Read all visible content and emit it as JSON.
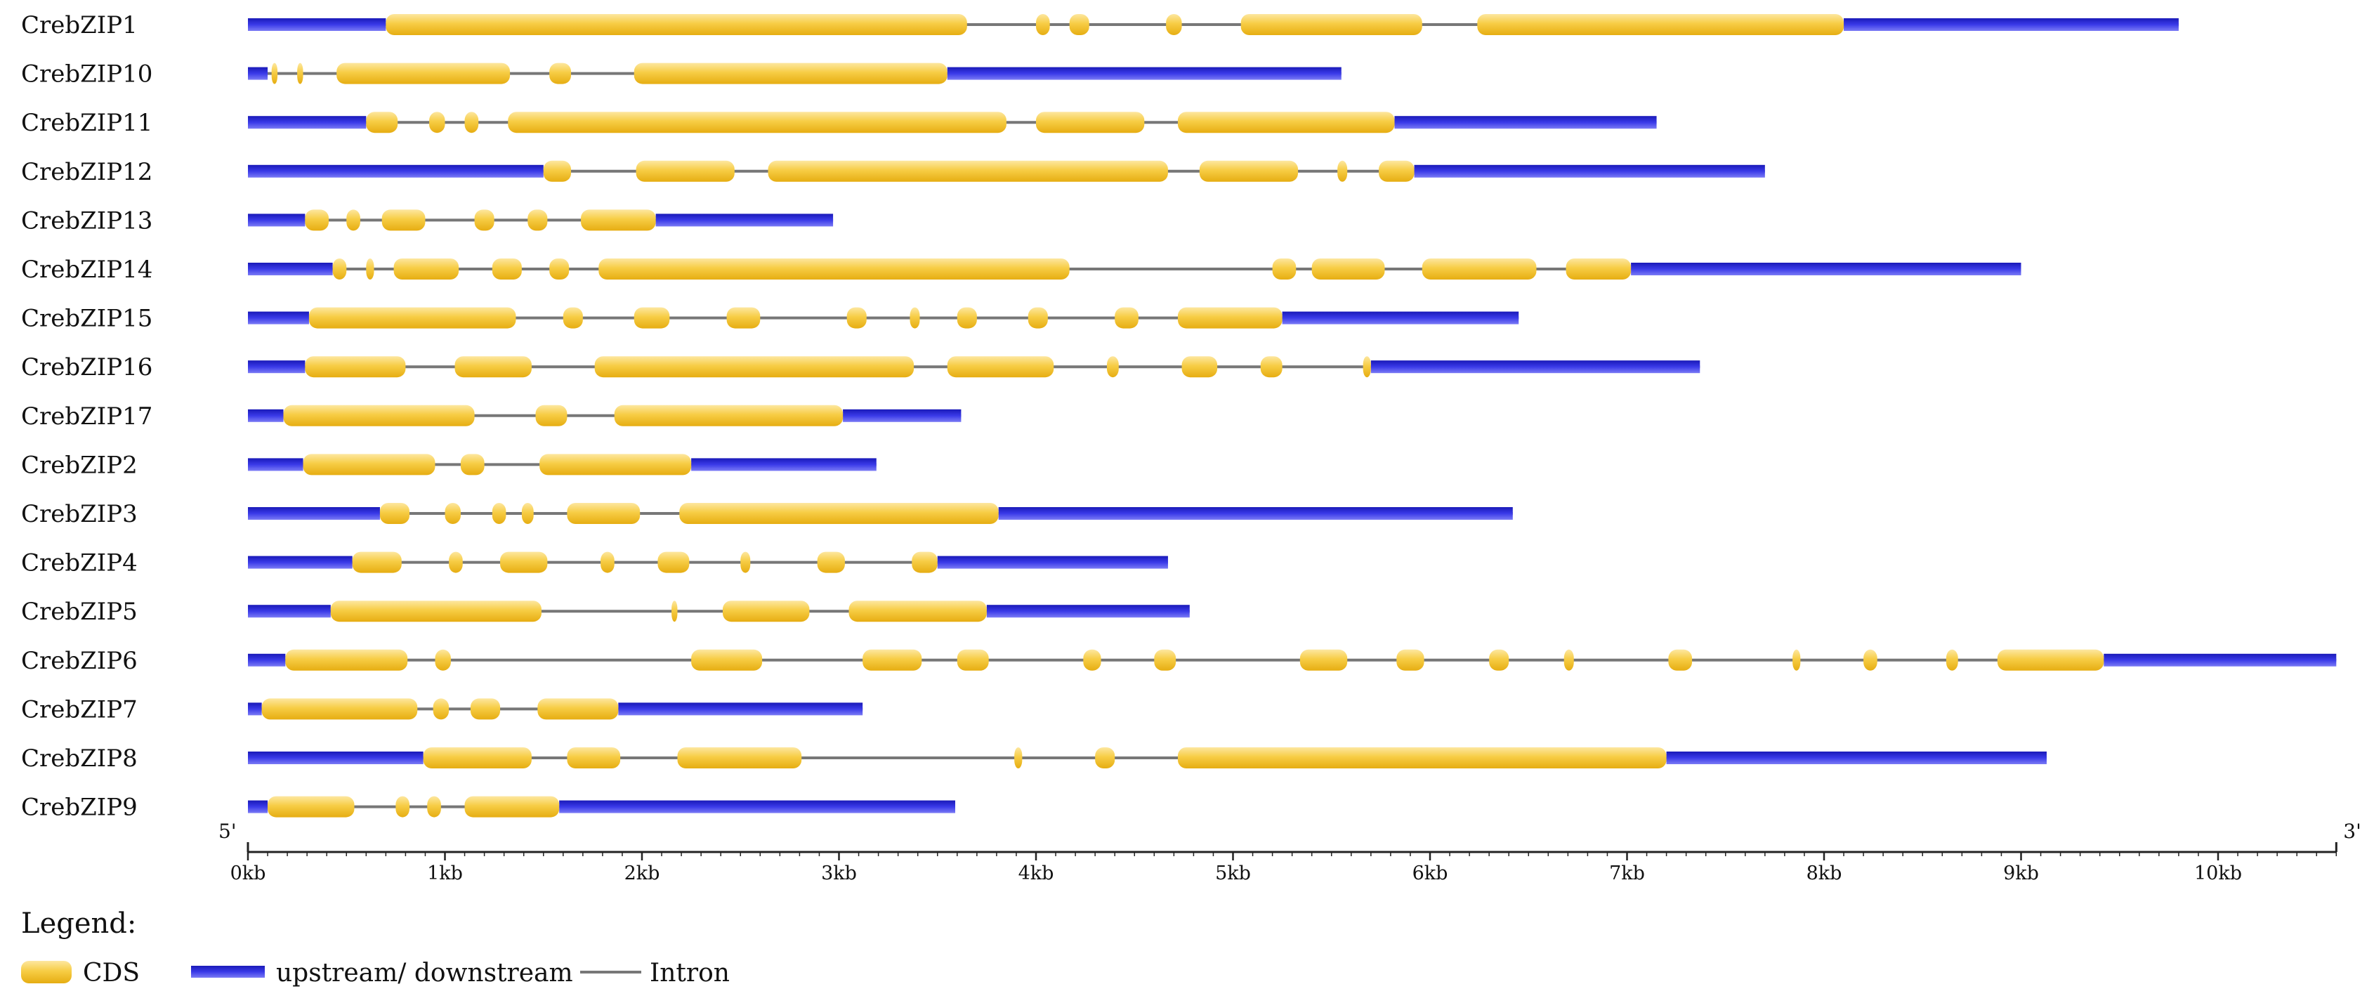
{
  "chart_data": {
    "type": "gene-structure",
    "unit": "kb",
    "axis": {
      "min": 0,
      "max": 10.6,
      "ticks": [
        0,
        1,
        2,
        3,
        4,
        5,
        6,
        7,
        8,
        9,
        10
      ],
      "tick_labels": [
        "0kb",
        "1kb",
        "2kb",
        "3kb",
        "4kb",
        "5kb",
        "6kb",
        "7kb",
        "8kb",
        "9kb",
        "10kb"
      ],
      "left_end": "5'",
      "right_end": "3'"
    },
    "colors": {
      "cds": "#f5c542",
      "utr": "#1f1fc8",
      "intron": "#777777"
    },
    "genes": [
      {
        "name": "CrebZIP1",
        "length": 9.8,
        "utr": [
          [
            0,
            0.7
          ],
          [
            8.1,
            9.8
          ]
        ],
        "cds": [
          [
            0.7,
            3.65
          ],
          [
            4.0,
            4.07
          ],
          [
            4.17,
            4.27
          ],
          [
            4.66,
            4.74
          ],
          [
            5.04,
            5.96
          ],
          [
            6.24,
            8.1
          ]
        ]
      },
      {
        "name": "CrebZIP10",
        "length": 5.55,
        "utr": [
          [
            0,
            0.1
          ],
          [
            3.55,
            5.55
          ]
        ],
        "cds": [
          [
            0.12,
            0.15
          ],
          [
            0.25,
            0.28
          ],
          [
            0.45,
            1.33
          ],
          [
            1.53,
            1.64
          ],
          [
            1.96,
            3.55
          ]
        ]
      },
      {
        "name": "CrebZIP11",
        "length": 7.15,
        "utr": [
          [
            0,
            0.6
          ],
          [
            5.82,
            7.15
          ]
        ],
        "cds": [
          [
            0.6,
            0.76
          ],
          [
            0.92,
            1.0
          ],
          [
            1.1,
            1.17
          ],
          [
            1.32,
            3.85
          ],
          [
            4.0,
            4.55
          ],
          [
            4.72,
            5.82
          ]
        ]
      },
      {
        "name": "CrebZIP12",
        "length": 7.7,
        "utr": [
          [
            0,
            1.5
          ],
          [
            5.92,
            7.7
          ]
        ],
        "cds": [
          [
            1.5,
            1.64
          ],
          [
            1.97,
            2.47
          ],
          [
            2.64,
            4.67
          ],
          [
            4.83,
            5.33
          ],
          [
            5.53,
            5.58
          ],
          [
            5.74,
            5.92
          ]
        ]
      },
      {
        "name": "CrebZIP13",
        "length": 2.97,
        "utr": [
          [
            0,
            0.29
          ],
          [
            2.07,
            2.97
          ]
        ],
        "cds": [
          [
            0.29,
            0.41
          ],
          [
            0.5,
            0.57
          ],
          [
            0.68,
            0.9
          ],
          [
            1.15,
            1.25
          ],
          [
            1.42,
            1.52
          ],
          [
            1.69,
            2.07
          ]
        ]
      },
      {
        "name": "CrebZIP14",
        "length": 9.0,
        "utr": [
          [
            0,
            0.43
          ],
          [
            7.02,
            9.0
          ]
        ],
        "cds": [
          [
            0.43,
            0.5
          ],
          [
            0.6,
            0.64
          ],
          [
            0.74,
            1.07
          ],
          [
            1.24,
            1.39
          ],
          [
            1.53,
            1.63
          ],
          [
            1.78,
            4.17
          ],
          [
            5.2,
            5.32
          ],
          [
            5.4,
            5.77
          ],
          [
            5.96,
            6.54
          ],
          [
            6.69,
            7.02
          ]
        ]
      },
      {
        "name": "CrebZIP15",
        "length": 6.45,
        "utr": [
          [
            0,
            0.31
          ],
          [
            5.25,
            6.45
          ]
        ],
        "cds": [
          [
            0.31,
            1.36
          ],
          [
            1.6,
            1.7
          ],
          [
            1.96,
            2.14
          ],
          [
            2.43,
            2.6
          ],
          [
            3.04,
            3.14
          ],
          [
            3.36,
            3.41
          ],
          [
            3.6,
            3.7
          ],
          [
            3.96,
            4.06
          ],
          [
            4.4,
            4.52
          ],
          [
            4.72,
            5.25
          ]
        ]
      },
      {
        "name": "CrebZIP16",
        "length": 7.37,
        "utr": [
          [
            0,
            0.29
          ],
          [
            5.7,
            7.37
          ]
        ],
        "cds": [
          [
            0.29,
            0.8
          ],
          [
            1.05,
            1.44
          ],
          [
            1.76,
            3.38
          ],
          [
            3.55,
            4.09
          ],
          [
            4.36,
            4.42
          ],
          [
            4.74,
            4.92
          ],
          [
            5.14,
            5.25
          ],
          [
            5.66,
            5.7
          ]
        ]
      },
      {
        "name": "CrebZIP17",
        "length": 3.62,
        "utr": [
          [
            0,
            0.18
          ],
          [
            3.02,
            3.62
          ]
        ],
        "cds": [
          [
            0.18,
            1.15
          ],
          [
            1.46,
            1.62
          ],
          [
            1.86,
            3.02
          ]
        ]
      },
      {
        "name": "CrebZIP2",
        "length": 3.19,
        "utr": [
          [
            0,
            0.28
          ],
          [
            2.25,
            3.19
          ]
        ],
        "cds": [
          [
            0.28,
            0.95
          ],
          [
            1.08,
            1.2
          ],
          [
            1.48,
            2.25
          ]
        ]
      },
      {
        "name": "CrebZIP3",
        "length": 6.42,
        "utr": [
          [
            0,
            0.67
          ],
          [
            3.81,
            6.42
          ]
        ],
        "cds": [
          [
            0.67,
            0.82
          ],
          [
            1.0,
            1.08
          ],
          [
            1.24,
            1.31
          ],
          [
            1.39,
            1.45
          ],
          [
            1.62,
            1.99
          ],
          [
            2.19,
            3.81
          ]
        ]
      },
      {
        "name": "CrebZIP4",
        "length": 4.67,
        "utr": [
          [
            0,
            0.53
          ],
          [
            3.5,
            4.67
          ]
        ],
        "cds": [
          [
            0.53,
            0.78
          ],
          [
            1.02,
            1.09
          ],
          [
            1.28,
            1.52
          ],
          [
            1.79,
            1.86
          ],
          [
            2.08,
            2.24
          ],
          [
            2.5,
            2.55
          ],
          [
            2.89,
            3.03
          ],
          [
            3.37,
            3.5
          ]
        ]
      },
      {
        "name": "CrebZIP5",
        "length": 4.78,
        "utr": [
          [
            0,
            0.42
          ],
          [
            3.75,
            4.78
          ]
        ],
        "cds": [
          [
            0.42,
            1.49
          ],
          [
            2.15,
            2.18
          ],
          [
            2.41,
            2.85
          ],
          [
            3.05,
            3.75
          ]
        ]
      },
      {
        "name": "CrebZIP6",
        "length": 10.6,
        "utr": [
          [
            0,
            0.19
          ],
          [
            9.42,
            10.6
          ]
        ],
        "cds": [
          [
            0.19,
            0.81
          ],
          [
            0.95,
            1.03
          ],
          [
            2.25,
            2.61
          ],
          [
            3.12,
            3.42
          ],
          [
            3.6,
            3.76
          ],
          [
            4.24,
            4.33
          ],
          [
            4.6,
            4.71
          ],
          [
            5.34,
            5.58
          ],
          [
            5.83,
            5.97
          ],
          [
            6.3,
            6.4
          ],
          [
            6.68,
            6.73
          ],
          [
            7.21,
            7.33
          ],
          [
            7.84,
            7.88
          ],
          [
            8.2,
            8.27
          ],
          [
            8.62,
            8.68
          ],
          [
            8.88,
            9.42
          ]
        ]
      },
      {
        "name": "CrebZIP7",
        "length": 3.12,
        "utr": [
          [
            0,
            0.07
          ],
          [
            1.88,
            3.12
          ]
        ],
        "cds": [
          [
            0.07,
            0.86
          ],
          [
            0.94,
            1.02
          ],
          [
            1.13,
            1.28
          ],
          [
            1.47,
            1.88
          ]
        ]
      },
      {
        "name": "CrebZIP8",
        "length": 9.13,
        "utr": [
          [
            0,
            0.89
          ],
          [
            7.2,
            9.13
          ]
        ],
        "cds": [
          [
            0.89,
            1.44
          ],
          [
            1.62,
            1.89
          ],
          [
            2.18,
            2.81
          ],
          [
            3.89,
            3.93
          ],
          [
            4.3,
            4.4
          ],
          [
            4.72,
            7.2
          ]
        ]
      },
      {
        "name": "CrebZIP9",
        "length": 3.59,
        "utr": [
          [
            0,
            0.1
          ],
          [
            1.58,
            3.59
          ]
        ],
        "cds": [
          [
            0.1,
            0.54
          ],
          [
            0.75,
            0.82
          ],
          [
            0.91,
            0.98
          ],
          [
            1.1,
            1.58
          ]
        ]
      }
    ]
  },
  "legend": {
    "title": "Legend:",
    "items": [
      {
        "key": "cds",
        "label": "CDS"
      },
      {
        "key": "utr",
        "label": "upstream/ downstream"
      },
      {
        "key": "intron",
        "label": "Intron"
      }
    ]
  }
}
